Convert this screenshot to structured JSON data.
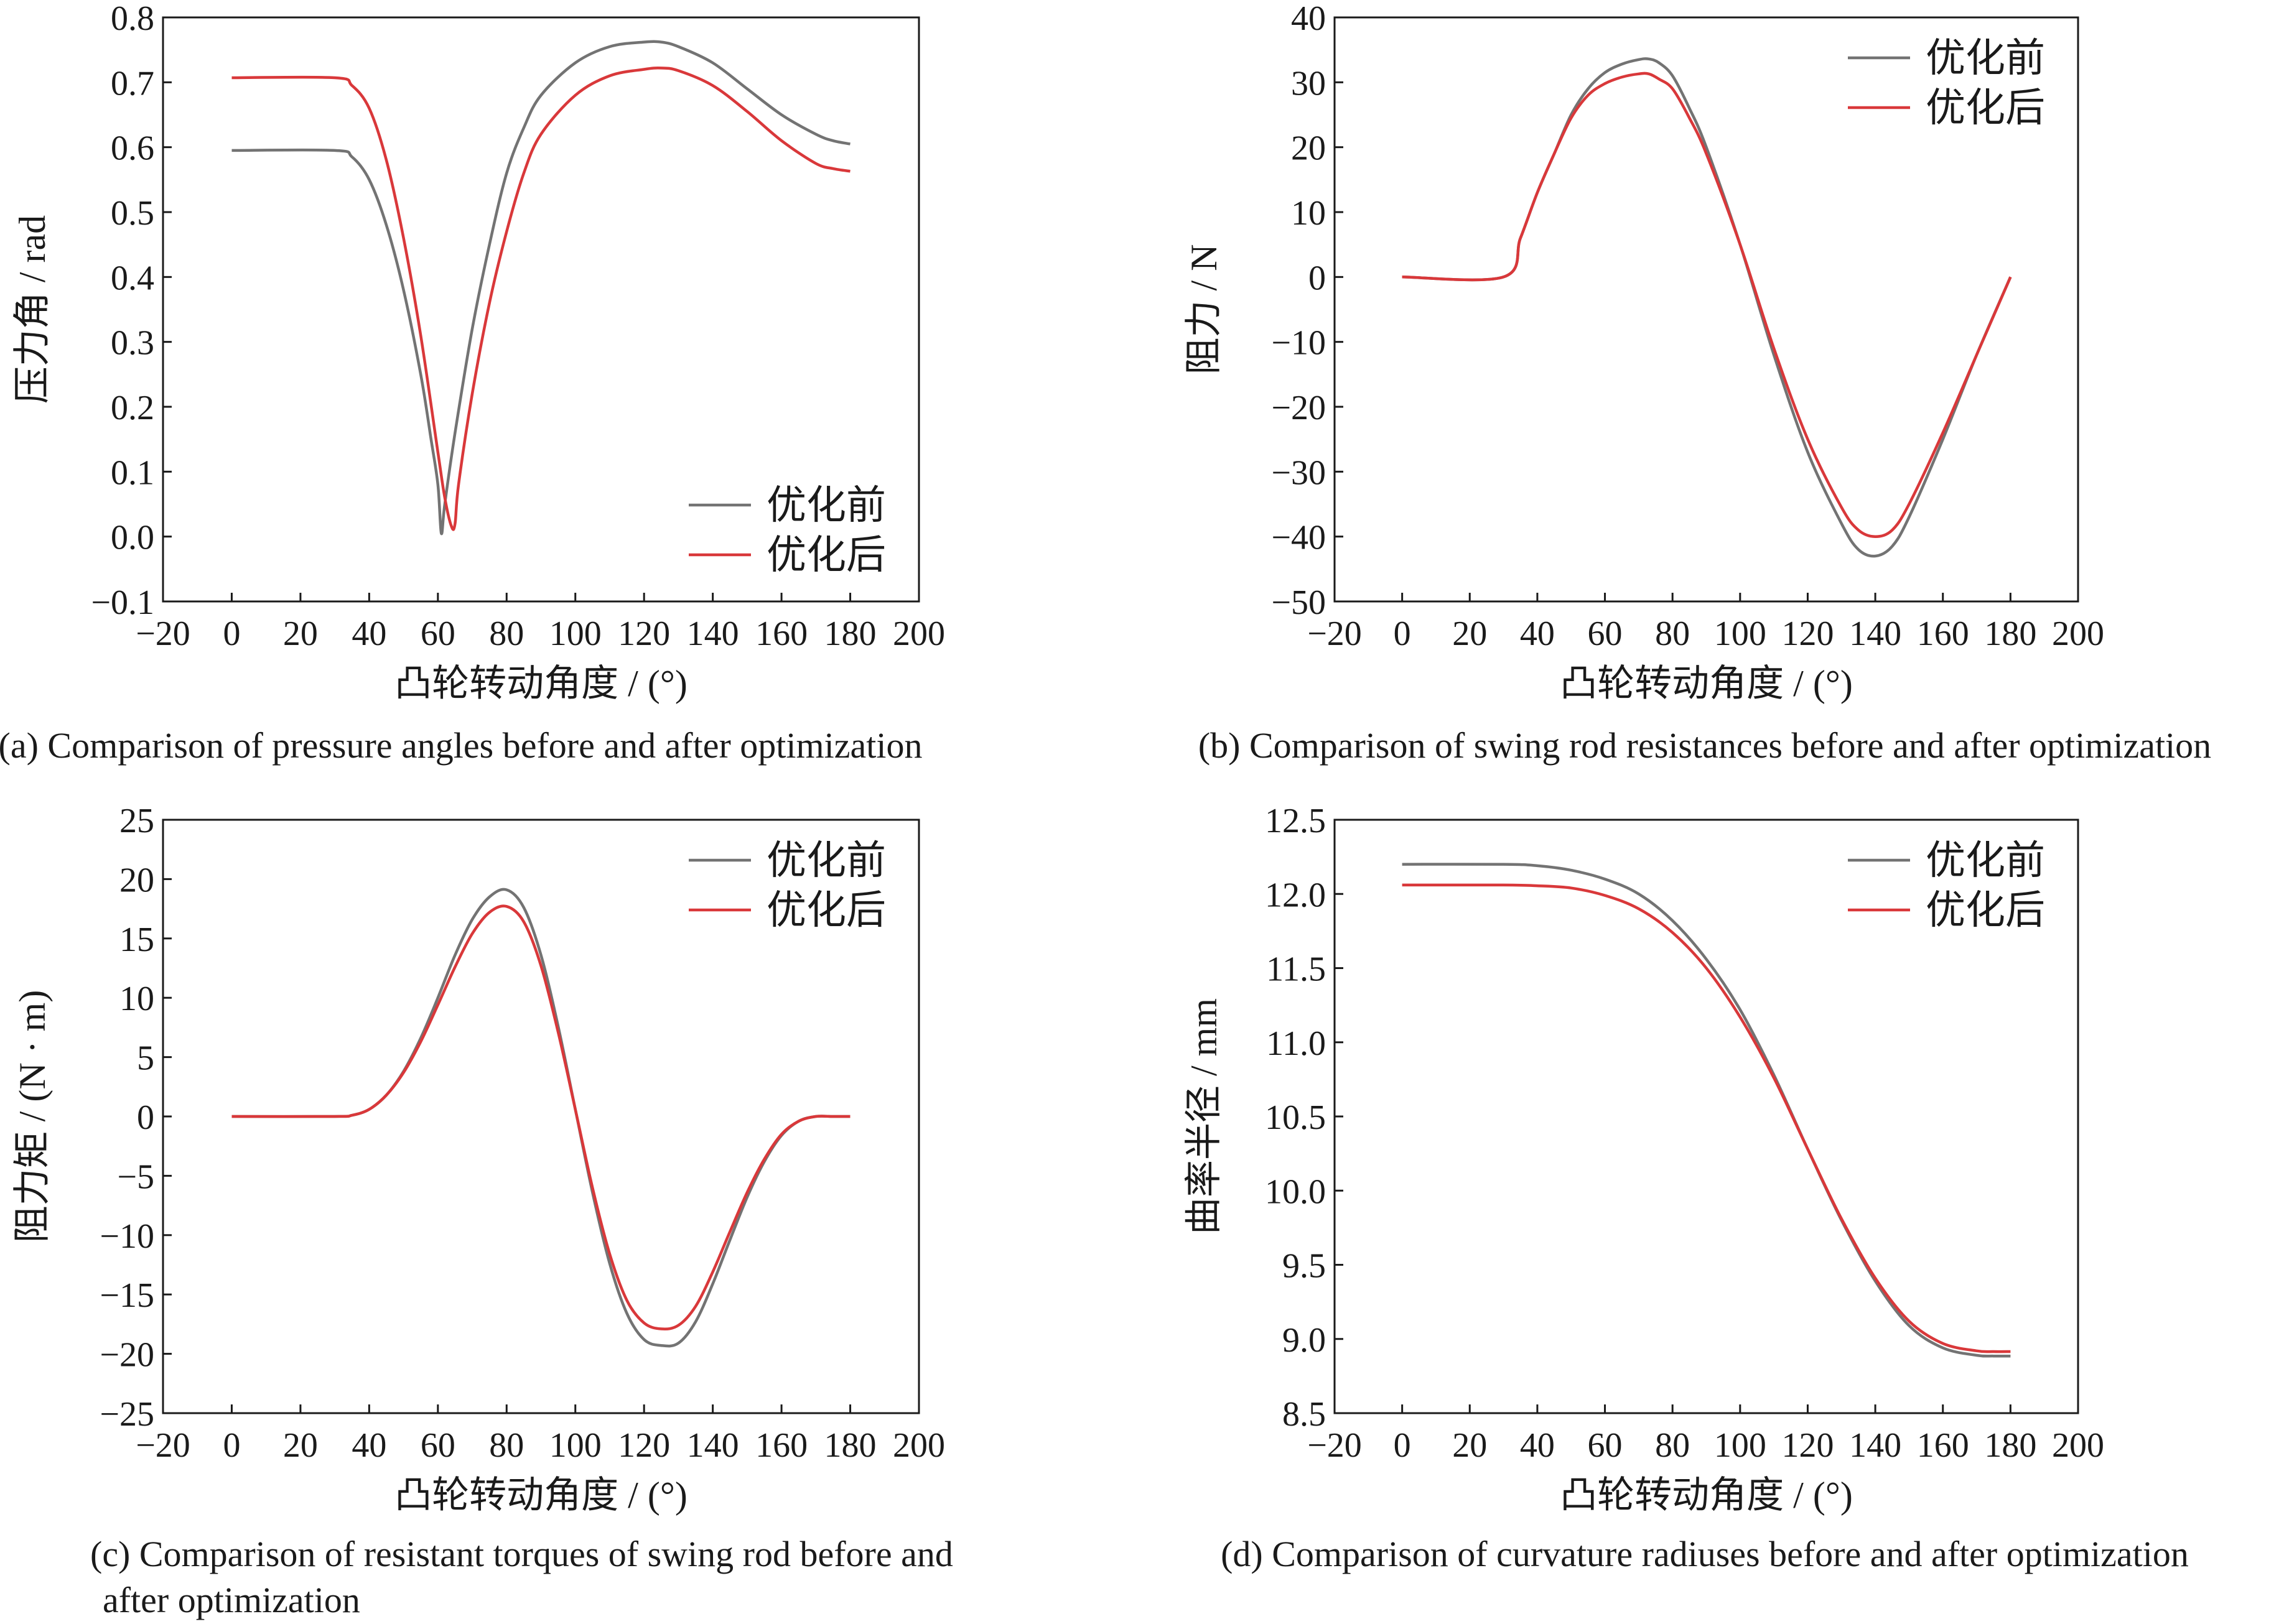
{
  "colors": {
    "before": "#737373",
    "after": "#d9383a",
    "axis": "#1a1a1a"
  },
  "legend": [
    "优化前",
    "优化后"
  ],
  "chart_data": [
    {
      "type": "line",
      "caption": "(a) Comparison of pressure angles before and after optimization",
      "xlabel": "凸轮转动角度 / (°)",
      "ylabel": "压力角 / rad",
      "xlim": [
        -20,
        200
      ],
      "ylim": [
        -0.1,
        0.8
      ],
      "xticks": [
        -20,
        0,
        20,
        40,
        60,
        80,
        100,
        120,
        140,
        160,
        180,
        200
      ],
      "yticks": [
        -0.1,
        0.0,
        0.1,
        0.2,
        0.3,
        0.4,
        0.5,
        0.6,
        0.7,
        0.8
      ],
      "ytick_labels": [
        "−0.1",
        "0.0",
        "0.1",
        "0.2",
        "0.3",
        "0.4",
        "0.5",
        "0.6",
        "0.7",
        "0.8"
      ],
      "legend_position": "bottom-right",
      "series": [
        {
          "name": "优化前",
          "x": [
            0,
            30,
            35,
            40,
            45,
            50,
            55,
            58,
            60,
            61,
            62,
            65,
            70,
            75,
            80,
            85,
            90,
            100,
            110,
            120,
            125,
            130,
            140,
            150,
            160,
            170,
            175,
            180
          ],
          "y": [
            0.595,
            0.595,
            0.585,
            0.55,
            0.48,
            0.38,
            0.25,
            0.15,
            0.08,
            0.005,
            0.05,
            0.16,
            0.32,
            0.45,
            0.56,
            0.63,
            0.68,
            0.73,
            0.755,
            0.762,
            0.762,
            0.755,
            0.73,
            0.69,
            0.65,
            0.62,
            0.61,
            0.605
          ]
        },
        {
          "name": "优化后",
          "x": [
            0,
            30,
            35,
            40,
            45,
            50,
            55,
            60,
            62,
            64,
            65,
            66,
            70,
            75,
            80,
            85,
            90,
            100,
            110,
            120,
            125,
            130,
            140,
            150,
            160,
            170,
            175,
            180
          ],
          "y": [
            0.707,
            0.707,
            0.695,
            0.66,
            0.58,
            0.46,
            0.31,
            0.13,
            0.06,
            0.015,
            0.02,
            0.08,
            0.22,
            0.36,
            0.47,
            0.56,
            0.62,
            0.68,
            0.71,
            0.72,
            0.722,
            0.718,
            0.695,
            0.655,
            0.61,
            0.575,
            0.567,
            0.563
          ]
        }
      ]
    },
    {
      "type": "line",
      "caption": "(b) Comparison of swing rod resistances before and after optimization",
      "xlabel": "凸轮转动角度 / (°)",
      "ylabel": "阻力 / N",
      "xlim": [
        -20,
        200
      ],
      "ylim": [
        -50,
        40
      ],
      "xticks": [
        -20,
        0,
        20,
        40,
        60,
        80,
        100,
        120,
        140,
        160,
        180,
        200
      ],
      "yticks": [
        -50,
        -40,
        -30,
        -20,
        -10,
        0,
        10,
        20,
        30,
        40
      ],
      "ytick_labels": [
        "−50",
        "−40",
        "−30",
        "−20",
        "−10",
        "0",
        "10",
        "20",
        "30",
        "40"
      ],
      "legend_position": "top-right",
      "series": [
        {
          "name": "优化前",
          "x": [
            0,
            30,
            35,
            40,
            45,
            50,
            55,
            60,
            65,
            70,
            73,
            76,
            80,
            85,
            90,
            100,
            110,
            120,
            130,
            135,
            140,
            145,
            150,
            160,
            170,
            180
          ],
          "y": [
            0,
            0,
            6,
            13,
            19,
            25,
            29,
            31.5,
            32.8,
            33.5,
            33.6,
            33,
            31,
            26,
            20,
            5,
            -12,
            -27,
            -38,
            -42,
            -43,
            -41.5,
            -37,
            -25,
            -12,
            0
          ]
        },
        {
          "name": "优化后",
          "x": [
            0,
            30,
            35,
            40,
            45,
            50,
            55,
            60,
            65,
            70,
            73,
            76,
            80,
            85,
            90,
            100,
            110,
            120,
            130,
            135,
            140,
            145,
            150,
            160,
            170,
            180
          ],
          "y": [
            0,
            0,
            6,
            13,
            19,
            24.5,
            28,
            29.8,
            30.8,
            31.3,
            31.3,
            30.5,
            29,
            24.5,
            19,
            5,
            -11,
            -25,
            -35.5,
            -39,
            -40,
            -39,
            -35,
            -24,
            -12,
            0
          ]
        }
      ]
    },
    {
      "type": "line",
      "caption": "(c) Comparison of resistant torques of swing rod before and after optimization",
      "caption_lines": [
        "(c) Comparison of resistant torques of swing rod before and",
        "after optimization"
      ],
      "xlabel": "凸轮转动角度 / (°)",
      "ylabel": "阻力矩 / (N · m)",
      "xlim": [
        -20,
        200
      ],
      "ylim": [
        -25,
        25
      ],
      "xticks": [
        -20,
        0,
        20,
        40,
        60,
        80,
        100,
        120,
        140,
        160,
        180,
        200
      ],
      "yticks": [
        -25,
        -20,
        -15,
        -10,
        -5,
        0,
        5,
        10,
        15,
        20,
        25
      ],
      "ytick_labels": [
        "−25",
        "−20",
        "−15",
        "−10",
        "−5",
        "0",
        "5",
        "10",
        "15",
        "20",
        "25"
      ],
      "legend_position": "top-right",
      "series": [
        {
          "name": "优化前",
          "x": [
            0,
            30,
            35,
            40,
            45,
            50,
            55,
            60,
            65,
            70,
            75,
            80,
            85,
            90,
            95,
            100,
            105,
            110,
            115,
            120,
            125,
            130,
            135,
            140,
            145,
            150,
            155,
            160,
            165,
            170,
            175,
            180
          ],
          "y": [
            0,
            0,
            0.1,
            0.6,
            1.8,
            3.8,
            6.6,
            10,
            13.6,
            16.6,
            18.5,
            19.1,
            17.6,
            13.6,
            7.6,
            0.6,
            -6.4,
            -12.4,
            -16.6,
            -18.8,
            -19.3,
            -19.1,
            -17.3,
            -14.1,
            -10.4,
            -6.8,
            -3.8,
            -1.6,
            -0.4,
            0,
            0,
            0
          ]
        },
        {
          "name": "优化后",
          "x": [
            0,
            30,
            35,
            40,
            45,
            50,
            55,
            60,
            65,
            70,
            75,
            80,
            85,
            90,
            95,
            100,
            105,
            110,
            115,
            120,
            125,
            130,
            135,
            140,
            145,
            150,
            155,
            160,
            165,
            170,
            175,
            180
          ],
          "y": [
            0,
            0,
            0.1,
            0.6,
            1.8,
            3.7,
            6.3,
            9.4,
            12.6,
            15.4,
            17.2,
            17.7,
            16.4,
            12.7,
            7.1,
            0.6,
            -6,
            -11.6,
            -15.5,
            -17.4,
            -17.9,
            -17.6,
            -16,
            -13.1,
            -9.7,
            -6.4,
            -3.6,
            -1.5,
            -0.4,
            0,
            0,
            0
          ]
        }
      ]
    },
    {
      "type": "line",
      "caption": "(d) Comparison of curvature radiuses before and after optimization",
      "xlabel": "凸轮转动角度 / (°)",
      "ylabel": "曲率半径 / mm",
      "xlim": [
        -20,
        200
      ],
      "ylim": [
        8.5,
        12.5
      ],
      "xticks": [
        -20,
        0,
        20,
        40,
        60,
        80,
        100,
        120,
        140,
        160,
        180,
        200
      ],
      "yticks": [
        8.5,
        9.0,
        9.5,
        10.0,
        10.5,
        11.0,
        11.5,
        12.0,
        12.5
      ],
      "ytick_labels": [
        "8.5",
        "9.0",
        "9.5",
        "10.0",
        "10.5",
        "11.0",
        "11.5",
        "12.0",
        "12.5"
      ],
      "legend_position": "top-right",
      "series": [
        {
          "name": "优化前",
          "x": [
            0,
            30,
            40,
            50,
            60,
            70,
            80,
            90,
            100,
            110,
            120,
            130,
            140,
            150,
            160,
            170,
            175,
            180
          ],
          "y": [
            12.2,
            12.2,
            12.19,
            12.16,
            12.1,
            12.0,
            11.82,
            11.56,
            11.22,
            10.78,
            10.28,
            9.8,
            9.39,
            9.09,
            8.94,
            8.89,
            8.885,
            8.885
          ]
        },
        {
          "name": "优化后",
          "x": [
            0,
            30,
            40,
            50,
            60,
            70,
            80,
            90,
            100,
            110,
            120,
            130,
            140,
            150,
            160,
            170,
            175,
            180
          ],
          "y": [
            12.06,
            12.06,
            12.055,
            12.04,
            11.99,
            11.9,
            11.74,
            11.5,
            11.17,
            10.76,
            10.28,
            9.81,
            9.41,
            9.12,
            8.97,
            8.92,
            8.915,
            8.915
          ]
        }
      ]
    }
  ]
}
